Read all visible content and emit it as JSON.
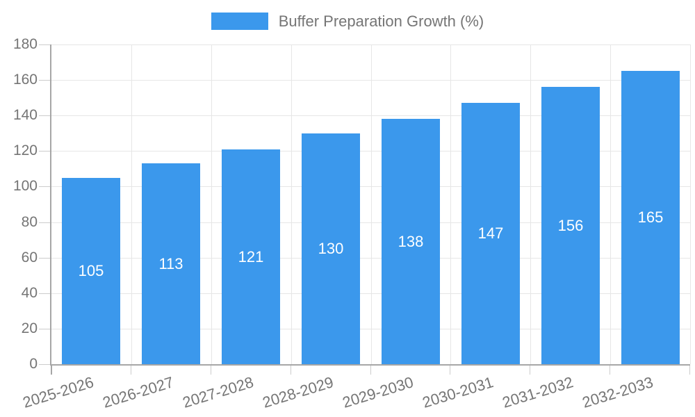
{
  "chart_data": {
    "type": "bar",
    "title": "Buffer Preparation Growth (%)",
    "categories": [
      "2025-2026",
      "2026-2027",
      "2027-2028",
      "2028-2029",
      "2029-2030",
      "2030-2031",
      "2031-2032",
      "2032-2033"
    ],
    "values": [
      105,
      113,
      121,
      130,
      138,
      147,
      156,
      165
    ],
    "yticks": [
      0,
      20,
      40,
      60,
      80,
      100,
      120,
      140,
      160,
      180
    ],
    "ylim": [
      0,
      180
    ],
    "xlabel": "",
    "ylabel": "",
    "grid": true,
    "legend_position": "top-center",
    "value_label_position": "inside-center",
    "bar_color": "#3b98ec",
    "value_label_color": "#ffffff",
    "text_color": "#757575",
    "grid_color": "#e6e6e6",
    "axis_color": "#a6a6a6",
    "tick_color": "#cccccc",
    "background": "#ffffff"
  }
}
